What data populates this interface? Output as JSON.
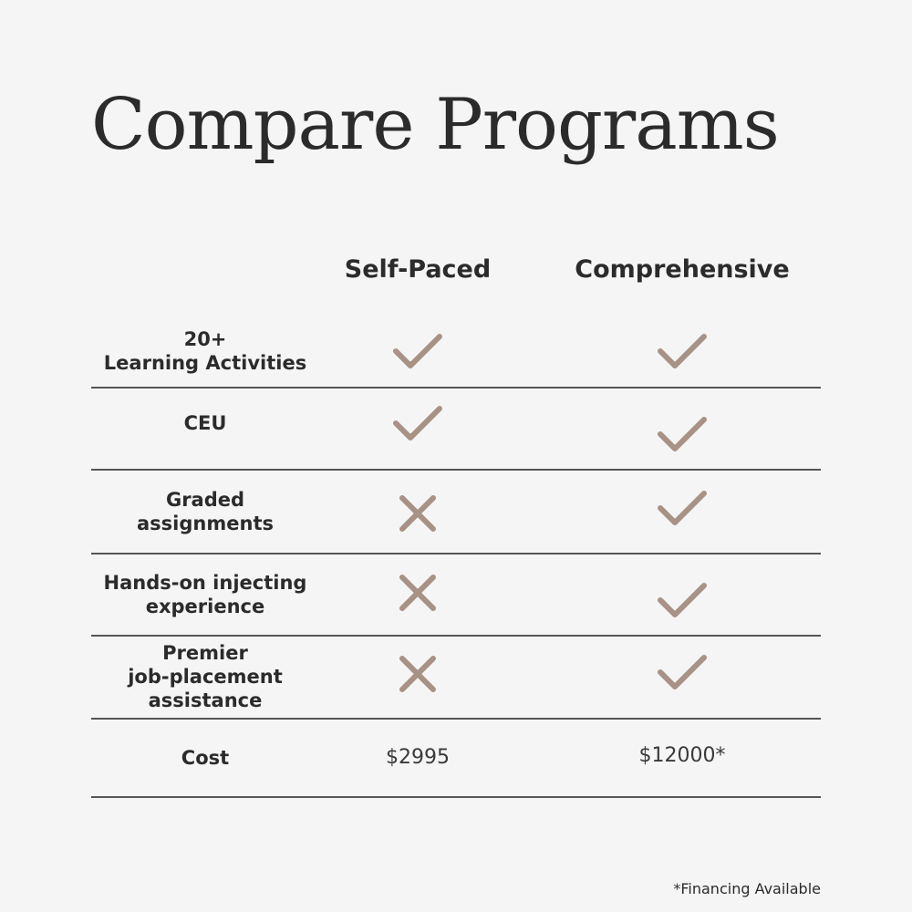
{
  "page": {
    "title": "Compare Programs"
  },
  "columns": [
    "Self-Paced",
    "Comprehensive"
  ],
  "rows": [
    {
      "label": "20+\nLearning Activities",
      "self_paced": "check",
      "comprehensive": "check"
    },
    {
      "label": "CEU",
      "self_paced": "check",
      "comprehensive": "check"
    },
    {
      "label": "Graded\nassignments",
      "self_paced": "cross",
      "comprehensive": "check"
    },
    {
      "label": "Hands-on injecting\nexperience",
      "self_paced": "cross",
      "comprehensive": "check"
    },
    {
      "label": "Premier\njob-placement\nassistance",
      "self_paced": "cross",
      "comprehensive": "check"
    }
  ],
  "cost": {
    "label": "Cost",
    "self_paced": "$2995",
    "comprehensive": "$12000*"
  },
  "footnote": "*Financing Available",
  "colors": {
    "icon": "#a89286",
    "text": "#2b2b2b",
    "background": "#f5f5f5"
  },
  "icons": {
    "check": "check-icon",
    "cross": "cross-icon"
  }
}
